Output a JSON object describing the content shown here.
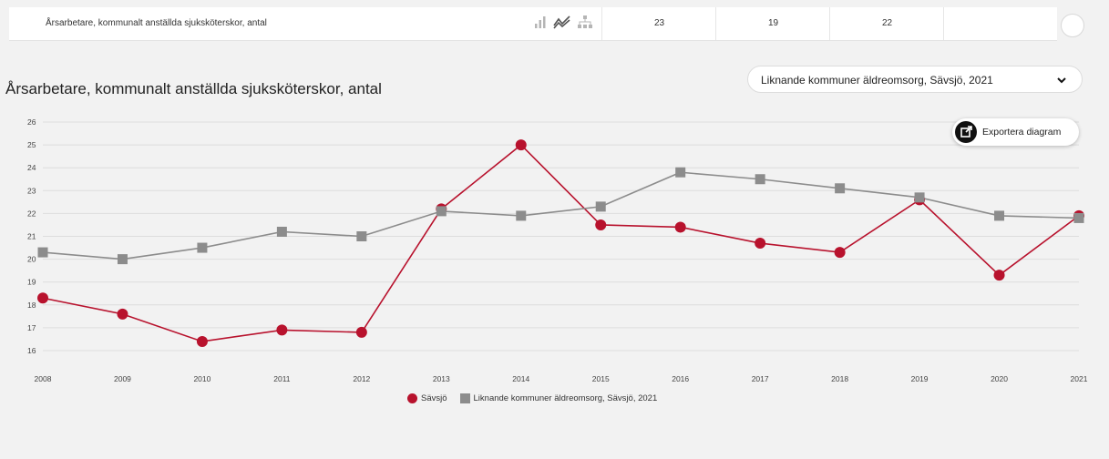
{
  "table_row": {
    "label": "Årsarbetare, kommunalt anställda sjuksköterskor, antal",
    "values": [
      "23",
      "19",
      "22",
      ""
    ]
  },
  "chart_header": {
    "title": "Årsarbetare, kommunalt anställda sjuksköterskor, antal",
    "selector_value": "Liknande kommuner äldreomsorg, Sävsjö, 2021",
    "export_label": "Exportera diagram"
  },
  "icons": [
    "bar-chart-icon",
    "line-chart-icon",
    "hierarchy-icon",
    "chevron-down-icon",
    "export-icon"
  ],
  "colors": {
    "series1": "#b8122d",
    "series2": "#8c8c8c",
    "background": "#f2f2f2"
  },
  "chart_data": {
    "type": "line",
    "title": "Årsarbetare, kommunalt anställda sjuksköterskor, antal",
    "xlabel": "",
    "ylabel": "",
    "x": [
      "2008",
      "2009",
      "2010",
      "2011",
      "2012",
      "2013",
      "2014",
      "2015",
      "2016",
      "2017",
      "2018",
      "2019",
      "2020",
      "2021"
    ],
    "ylim": [
      16,
      26
    ],
    "yticks": [
      16,
      17,
      18,
      19,
      20,
      21,
      22,
      23,
      24,
      25,
      26
    ],
    "grid": true,
    "legend_position": "bottom",
    "series": [
      {
        "name": "Sävsjö",
        "marker": "circle",
        "color": "#b8122d",
        "values": [
          18.3,
          17.6,
          16.4,
          16.9,
          16.8,
          22.2,
          25.0,
          21.5,
          21.4,
          20.7,
          20.3,
          22.6,
          19.3,
          21.9
        ]
      },
      {
        "name": "Liknande kommuner äldreomsorg, Sävsjö, 2021",
        "marker": "square",
        "color": "#8c8c8c",
        "values": [
          20.3,
          20.0,
          20.5,
          21.2,
          21.0,
          22.1,
          21.9,
          22.3,
          23.8,
          23.5,
          23.1,
          22.7,
          21.9,
          21.8
        ]
      }
    ]
  }
}
